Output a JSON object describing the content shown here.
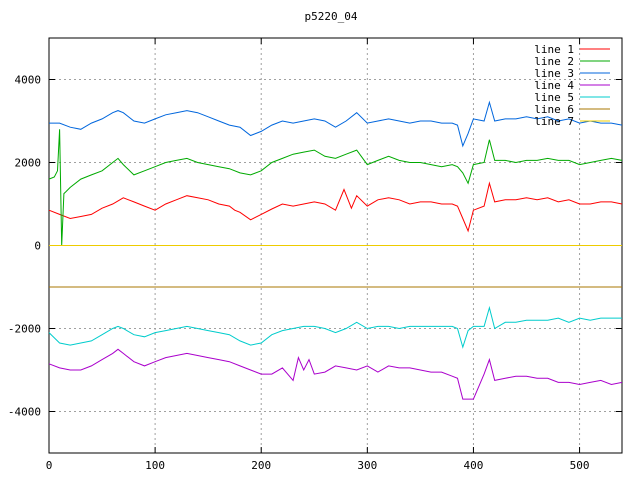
{
  "chart_data": {
    "type": "line",
    "title": "p5220_04",
    "xlabel": "",
    "ylabel": "",
    "xlim": [
      0,
      540
    ],
    "ylim": [
      -5000,
      5000
    ],
    "xticks": [
      0,
      100,
      200,
      300,
      400,
      500
    ],
    "yticks": [
      -4000,
      -2000,
      0,
      2000,
      4000
    ],
    "grid": true,
    "legend_position": "top-right",
    "series": [
      {
        "name": "line 1",
        "color": "#ff0000",
        "x": [
          0,
          10,
          20,
          30,
          40,
          50,
          60,
          70,
          80,
          90,
          100,
          110,
          120,
          130,
          140,
          150,
          160,
          170,
          175,
          180,
          190,
          200,
          210,
          220,
          230,
          240,
          250,
          260,
          270,
          278,
          285,
          290,
          300,
          310,
          320,
          330,
          340,
          350,
          360,
          370,
          380,
          385,
          390,
          395,
          400,
          410,
          415,
          420,
          430,
          440,
          450,
          460,
          470,
          480,
          490,
          500,
          510,
          520,
          530,
          540
        ],
        "y": [
          850,
          750,
          650,
          700,
          750,
          900,
          1000,
          1150,
          1050,
          950,
          850,
          1000,
          1100,
          1200,
          1150,
          1100,
          1000,
          950,
          850,
          800,
          620,
          750,
          880,
          1000,
          950,
          1000,
          1050,
          1000,
          850,
          1350,
          900,
          1200,
          950,
          1100,
          1150,
          1100,
          1000,
          1050,
          1050,
          1000,
          1000,
          950,
          650,
          350,
          850,
          950,
          1500,
          1050,
          1100,
          1100,
          1150,
          1100,
          1150,
          1050,
          1100,
          1000,
          1000,
          1050,
          1050,
          1000
        ]
      },
      {
        "name": "line 2",
        "color": "#00aa00",
        "x": [
          0,
          5,
          8,
          10,
          12,
          14,
          16,
          20,
          30,
          40,
          50,
          60,
          65,
          70,
          80,
          90,
          100,
          110,
          120,
          130,
          140,
          150,
          160,
          170,
          180,
          190,
          200,
          210,
          220,
          230,
          240,
          250,
          260,
          270,
          280,
          290,
          300,
          310,
          320,
          330,
          340,
          350,
          360,
          370,
          380,
          385,
          390,
          395,
          400,
          410,
          415,
          420,
          430,
          440,
          450,
          460,
          470,
          480,
          490,
          500,
          510,
          520,
          530,
          540
        ],
        "y": [
          1600,
          1650,
          1800,
          2800,
          0,
          1250,
          1300,
          1400,
          1600,
          1700,
          1800,
          2000,
          2100,
          1950,
          1700,
          1800,
          1900,
          2000,
          2050,
          2100,
          2000,
          1950,
          1900,
          1850,
          1750,
          1700,
          1800,
          2000,
          2100,
          2200,
          2250,
          2300,
          2150,
          2100,
          2200,
          2300,
          1950,
          2050,
          2150,
          2050,
          2000,
          2000,
          1950,
          1900,
          1950,
          1900,
          1750,
          1500,
          1950,
          2000,
          2550,
          2050,
          2050,
          2000,
          2050,
          2050,
          2100,
          2050,
          2050,
          1950,
          2000,
          2050,
          2100,
          2050
        ]
      },
      {
        "name": "line 3",
        "color": "#0066dd",
        "x": [
          0,
          10,
          20,
          30,
          40,
          50,
          60,
          65,
          70,
          80,
          90,
          100,
          110,
          120,
          130,
          140,
          150,
          160,
          170,
          180,
          190,
          200,
          210,
          220,
          230,
          240,
          250,
          260,
          270,
          280,
          290,
          300,
          310,
          320,
          330,
          340,
          350,
          360,
          370,
          380,
          385,
          390,
          395,
          400,
          410,
          415,
          420,
          430,
          440,
          450,
          460,
          470,
          480,
          490,
          500,
          510,
          520,
          530,
          540
        ],
        "y": [
          2950,
          2950,
          2850,
          2800,
          2950,
          3050,
          3200,
          3250,
          3200,
          3000,
          2950,
          3050,
          3150,
          3200,
          3250,
          3200,
          3100,
          3000,
          2900,
          2850,
          2650,
          2750,
          2900,
          3000,
          2950,
          3000,
          3050,
          3000,
          2850,
          3000,
          3200,
          2950,
          3000,
          3050,
          3000,
          2950,
          3000,
          3000,
          2950,
          2950,
          2900,
          2400,
          2700,
          3050,
          3000,
          3450,
          3000,
          3050,
          3050,
          3100,
          3050,
          3100,
          3000,
          3050,
          2950,
          3000,
          2950,
          2950,
          2900
        ]
      },
      {
        "name": "line 4",
        "color": "#aa00cc",
        "x": [
          0,
          10,
          20,
          30,
          40,
          50,
          60,
          65,
          70,
          80,
          90,
          100,
          110,
          120,
          130,
          140,
          150,
          160,
          170,
          180,
          190,
          200,
          210,
          220,
          230,
          235,
          240,
          245,
          250,
          260,
          270,
          280,
          290,
          300,
          310,
          320,
          330,
          340,
          350,
          360,
          370,
          380,
          385,
          390,
          395,
          400,
          410,
          415,
          420,
          430,
          440,
          450,
          460,
          470,
          480,
          490,
          500,
          510,
          520,
          530,
          540
        ],
        "y": [
          -2850,
          -2950,
          -3000,
          -3000,
          -2900,
          -2750,
          -2600,
          -2500,
          -2600,
          -2800,
          -2900,
          -2800,
          -2700,
          -2650,
          -2600,
          -2650,
          -2700,
          -2750,
          -2800,
          -2900,
          -3000,
          -3100,
          -3100,
          -2950,
          -3250,
          -2700,
          -3000,
          -2750,
          -3100,
          -3050,
          -2900,
          -2950,
          -3000,
          -2900,
          -3050,
          -2900,
          -2950,
          -2950,
          -3000,
          -3050,
          -3050,
          -3150,
          -3200,
          -3700,
          -3700,
          -3700,
          -3100,
          -2750,
          -3250,
          -3200,
          -3150,
          -3150,
          -3200,
          -3200,
          -3300,
          -3300,
          -3350,
          -3300,
          -3250,
          -3350,
          -3300
        ]
      },
      {
        "name": "line 5",
        "color": "#00cccc",
        "x": [
          0,
          10,
          20,
          30,
          40,
          50,
          60,
          65,
          70,
          80,
          90,
          100,
          110,
          120,
          130,
          140,
          150,
          160,
          170,
          180,
          190,
          200,
          210,
          220,
          230,
          240,
          250,
          260,
          270,
          280,
          290,
          300,
          310,
          320,
          330,
          340,
          350,
          360,
          370,
          380,
          385,
          390,
          395,
          400,
          410,
          415,
          420,
          430,
          440,
          450,
          460,
          470,
          480,
          490,
          500,
          510,
          520,
          530,
          540
        ],
        "y": [
          -2100,
          -2350,
          -2400,
          -2350,
          -2300,
          -2150,
          -2000,
          -1950,
          -2000,
          -2150,
          -2200,
          -2100,
          -2050,
          -2000,
          -1950,
          -2000,
          -2050,
          -2100,
          -2150,
          -2300,
          -2400,
          -2350,
          -2150,
          -2050,
          -2000,
          -1950,
          -1950,
          -2000,
          -2100,
          -2000,
          -1850,
          -2000,
          -1950,
          -1950,
          -2000,
          -1950,
          -1950,
          -1950,
          -1950,
          -1950,
          -2000,
          -2450,
          -2050,
          -1950,
          -1950,
          -1500,
          -2000,
          -1850,
          -1850,
          -1800,
          -1800,
          -1800,
          -1750,
          -1850,
          -1750,
          -1800,
          -1750,
          -1750,
          -1750
        ]
      },
      {
        "name": "line 6",
        "color": "#aa7700",
        "x": [
          0,
          540
        ],
        "y": [
          -1000,
          -1000
        ]
      },
      {
        "name": "line 7",
        "color": "#eecc00",
        "x": [
          0,
          540
        ],
        "y": [
          0,
          0
        ]
      }
    ]
  }
}
